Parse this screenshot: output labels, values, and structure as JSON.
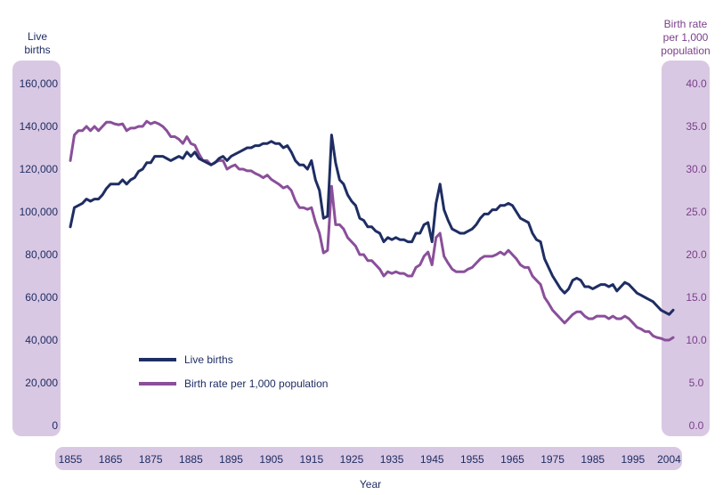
{
  "colors": {
    "axis_band": "#d9c8e3",
    "left_text": "#1e2d63",
    "right_text": "#7a3f8a",
    "live_births": "#1e2d63",
    "birth_rate": "#8a4f9a"
  },
  "chart_data": {
    "type": "line",
    "xlabel": "Year",
    "ylabel_left": "Live\nbirths",
    "ylabel_right": "Birth rate\nper 1,000\npopulation",
    "x_ticks": [
      "1855",
      "1865",
      "1875",
      "1885",
      "1895",
      "1905",
      "1915",
      "1925",
      "1935",
      "1945",
      "1955",
      "1965",
      "1975",
      "1985",
      "1995",
      "2004"
    ],
    "y_left_ticks": [
      "0",
      "20,000",
      "40,000",
      "60,000",
      "80,000",
      "100,000",
      "120,000",
      "140,000",
      "160,000"
    ],
    "y_right_ticks": [
      "0.0",
      "5.0",
      "10.0",
      "15.0",
      "20.0",
      "25.0",
      "30.0",
      "35.0",
      "40.0"
    ],
    "xlim": [
      1855,
      2005
    ],
    "ylim_left": [
      0,
      160000
    ],
    "ylim_right": [
      0,
      40
    ],
    "grid": false,
    "legend_position": "lower-left",
    "series": [
      {
        "name": "Live births",
        "axis": "left",
        "x": [
          1855,
          1856,
          1857,
          1858,
          1859,
          1860,
          1861,
          1862,
          1863,
          1864,
          1865,
          1866,
          1867,
          1868,
          1869,
          1870,
          1871,
          1872,
          1873,
          1874,
          1875,
          1876,
          1877,
          1878,
          1879,
          1880,
          1881,
          1882,
          1883,
          1884,
          1885,
          1886,
          1887,
          1888,
          1889,
          1890,
          1891,
          1892,
          1893,
          1894,
          1895,
          1896,
          1897,
          1898,
          1899,
          1900,
          1901,
          1902,
          1903,
          1904,
          1905,
          1906,
          1907,
          1908,
          1909,
          1910,
          1911,
          1912,
          1913,
          1914,
          1915,
          1916,
          1917,
          1918,
          1919,
          1920,
          1921,
          1922,
          1923,
          1924,
          1925,
          1926,
          1927,
          1928,
          1929,
          1930,
          1931,
          1932,
          1933,
          1934,
          1935,
          1936,
          1937,
          1938,
          1939,
          1940,
          1941,
          1942,
          1943,
          1944,
          1945,
          1946,
          1947,
          1948,
          1949,
          1950,
          1951,
          1952,
          1953,
          1954,
          1955,
          1956,
          1957,
          1958,
          1959,
          1960,
          1961,
          1962,
          1963,
          1964,
          1965,
          1966,
          1967,
          1968,
          1969,
          1970,
          1971,
          1972,
          1973,
          1974,
          1975,
          1976,
          1977,
          1978,
          1979,
          1980,
          1981,
          1982,
          1983,
          1984,
          1985,
          1986,
          1987,
          1988,
          1989,
          1990,
          1991,
          1992,
          1993,
          1994,
          1995,
          1996,
          1997,
          1998,
          1999,
          2000,
          2001,
          2002,
          2003,
          2004,
          2005
        ],
        "values": [
          93000,
          102000,
          103000,
          104000,
          106000,
          105000,
          106000,
          106000,
          108000,
          111000,
          113000,
          113000,
          113000,
          115000,
          113000,
          115000,
          116000,
          119000,
          120000,
          123000,
          123000,
          126000,
          126000,
          126000,
          125000,
          124000,
          125000,
          126000,
          125000,
          128000,
          126000,
          128000,
          125000,
          124000,
          123000,
          122000,
          123000,
          125000,
          126000,
          124000,
          126000,
          127000,
          128000,
          129000,
          130000,
          130000,
          131000,
          131000,
          132000,
          132000,
          133000,
          132000,
          132000,
          130000,
          131000,
          128000,
          124000,
          122000,
          122000,
          120000,
          124000,
          115000,
          110000,
          97000,
          98000,
          136000,
          123000,
          115000,
          113000,
          108000,
          105000,
          103000,
          97000,
          96000,
          93000,
          93000,
          91000,
          90000,
          86000,
          88000,
          87000,
          88000,
          87000,
          87000,
          86000,
          86000,
          90000,
          90000,
          94000,
          95000,
          86000,
          104000,
          113000,
          101000,
          96000,
          92000,
          91000,
          90000,
          90000,
          91000,
          92000,
          94000,
          97000,
          99000,
          99000,
          101000,
          101000,
          103000,
          103000,
          104000,
          103000,
          100000,
          97000,
          96000,
          95000,
          90000,
          87000,
          86000,
          78000,
          74000,
          70000,
          67000,
          64000,
          62000,
          64000,
          68000,
          69000,
          68000,
          65000,
          65000,
          64000,
          65000,
          66000,
          66000,
          65000,
          66000,
          63000,
          65000,
          67000,
          66000,
          64000,
          62000,
          61000,
          60000,
          59000,
          58000,
          56000,
          54000,
          53000,
          52000,
          54000
        ]
      },
      {
        "name": "Birth rate per 1,000 population",
        "axis": "right",
        "x": [
          1855,
          1856,
          1857,
          1858,
          1859,
          1860,
          1861,
          1862,
          1863,
          1864,
          1865,
          1866,
          1867,
          1868,
          1869,
          1870,
          1871,
          1872,
          1873,
          1874,
          1875,
          1876,
          1877,
          1878,
          1879,
          1880,
          1881,
          1882,
          1883,
          1884,
          1885,
          1886,
          1887,
          1888,
          1889,
          1890,
          1891,
          1892,
          1893,
          1894,
          1895,
          1896,
          1897,
          1898,
          1899,
          1900,
          1901,
          1902,
          1903,
          1904,
          1905,
          1906,
          1907,
          1908,
          1909,
          1910,
          1911,
          1912,
          1913,
          1914,
          1915,
          1916,
          1917,
          1918,
          1919,
          1920,
          1921,
          1922,
          1923,
          1924,
          1925,
          1926,
          1927,
          1928,
          1929,
          1930,
          1931,
          1932,
          1933,
          1934,
          1935,
          1936,
          1937,
          1938,
          1939,
          1940,
          1941,
          1942,
          1943,
          1944,
          1945,
          1946,
          1947,
          1948,
          1949,
          1950,
          1951,
          1952,
          1953,
          1954,
          1955,
          1956,
          1957,
          1958,
          1959,
          1960,
          1961,
          1962,
          1963,
          1964,
          1965,
          1966,
          1967,
          1968,
          1969,
          1970,
          1971,
          1972,
          1973,
          1974,
          1975,
          1976,
          1977,
          1978,
          1979,
          1980,
          1981,
          1982,
          1983,
          1984,
          1985,
          1986,
          1987,
          1988,
          1989,
          1990,
          1991,
          1992,
          1993,
          1994,
          1995,
          1996,
          1997,
          1998,
          1999,
          2000,
          2001,
          2002,
          2003,
          2004,
          2005
        ],
        "values": [
          31.0,
          34.0,
          34.5,
          34.5,
          35.0,
          34.5,
          35.0,
          34.5,
          35.0,
          35.5,
          35.5,
          35.3,
          35.2,
          35.3,
          34.5,
          34.8,
          34.8,
          35.0,
          35.0,
          35.6,
          35.3,
          35.5,
          35.3,
          35.0,
          34.5,
          33.8,
          33.8,
          33.5,
          33.0,
          33.8,
          33.0,
          32.8,
          31.8,
          31.0,
          31.0,
          30.5,
          30.8,
          31.0,
          31.0,
          30.0,
          30.3,
          30.5,
          30.0,
          30.0,
          29.8,
          29.8,
          29.5,
          29.3,
          29.0,
          29.3,
          28.8,
          28.5,
          28.2,
          27.8,
          28.0,
          27.5,
          26.3,
          25.5,
          25.5,
          25.3,
          25.5,
          23.8,
          22.5,
          20.2,
          20.5,
          28.0,
          23.5,
          23.5,
          23.0,
          22.0,
          21.5,
          21.0,
          20.0,
          20.0,
          19.3,
          19.3,
          18.8,
          18.3,
          17.5,
          18.0,
          17.8,
          18.0,
          17.8,
          17.8,
          17.5,
          17.5,
          18.5,
          18.8,
          19.8,
          20.3,
          18.8,
          22.0,
          22.5,
          19.8,
          19.0,
          18.3,
          18.0,
          18.0,
          18.0,
          18.3,
          18.5,
          19.0,
          19.5,
          19.8,
          19.8,
          19.8,
          20.0,
          20.3,
          20.0,
          20.5,
          20.0,
          19.5,
          18.8,
          18.5,
          18.5,
          17.5,
          17.0,
          16.5,
          15.0,
          14.3,
          13.5,
          13.0,
          12.5,
          12.0,
          12.5,
          13.0,
          13.3,
          13.3,
          12.8,
          12.5,
          12.5,
          12.8,
          12.8,
          12.8,
          12.5,
          12.8,
          12.5,
          12.5,
          12.8,
          12.5,
          12.0,
          11.5,
          11.3,
          11.0,
          11.0,
          10.5,
          10.3,
          10.2,
          10.0,
          10.0,
          10.3
        ]
      }
    ]
  }
}
